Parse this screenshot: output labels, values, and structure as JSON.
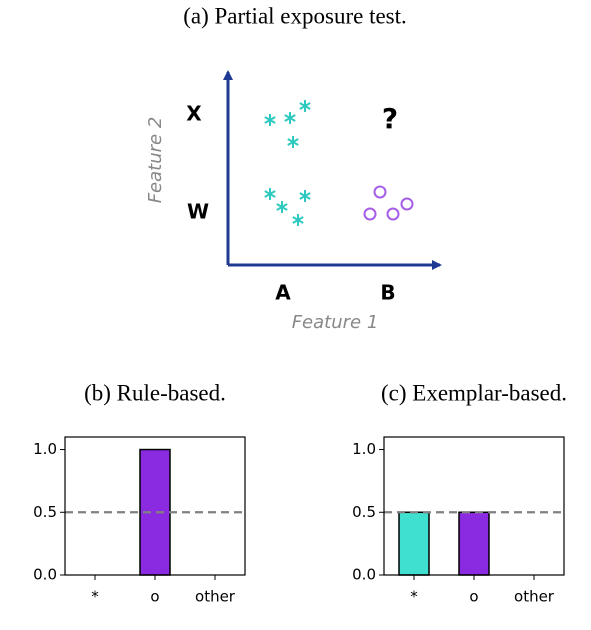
{
  "diagram": {
    "caption": "(a) Partial exposure test.",
    "x_label": "Feature 1",
    "y_label": "Feature 2",
    "x_categories": [
      "A",
      "B"
    ],
    "y_categories": [
      "W",
      "X"
    ],
    "query_label": "?"
  },
  "chart_data": [
    {
      "type": "bar",
      "title": "(b) Rule-based.",
      "categories": [
        "*",
        "o",
        "other"
      ],
      "values": [
        0,
        1,
        0
      ],
      "colors": [
        "#40e0d0",
        "#8a2be2",
        "#cccccc"
      ],
      "ylim": [
        0,
        1.1
      ],
      "yticks": [
        {
          "value": 0,
          "label": "0.0"
        },
        {
          "value": 0.5,
          "label": "0.5"
        },
        {
          "value": 1,
          "label": "1.0"
        }
      ],
      "reference_line": 0.5,
      "reference_color": "#808080"
    },
    {
      "type": "bar",
      "title": "(c) Exemplar-based.",
      "categories": [
        "*",
        "o",
        "other"
      ],
      "values": [
        0.5,
        0.5,
        0
      ],
      "colors": [
        "#40e0d0",
        "#8a2be2",
        "#cccccc"
      ],
      "ylim": [
        0,
        1.1
      ],
      "yticks": [
        {
          "value": 0,
          "label": "0.0"
        },
        {
          "value": 0.5,
          "label": "0.5"
        },
        {
          "value": 1,
          "label": "1.0"
        }
      ],
      "reference_line": 0.5,
      "reference_color": "#808080"
    }
  ]
}
